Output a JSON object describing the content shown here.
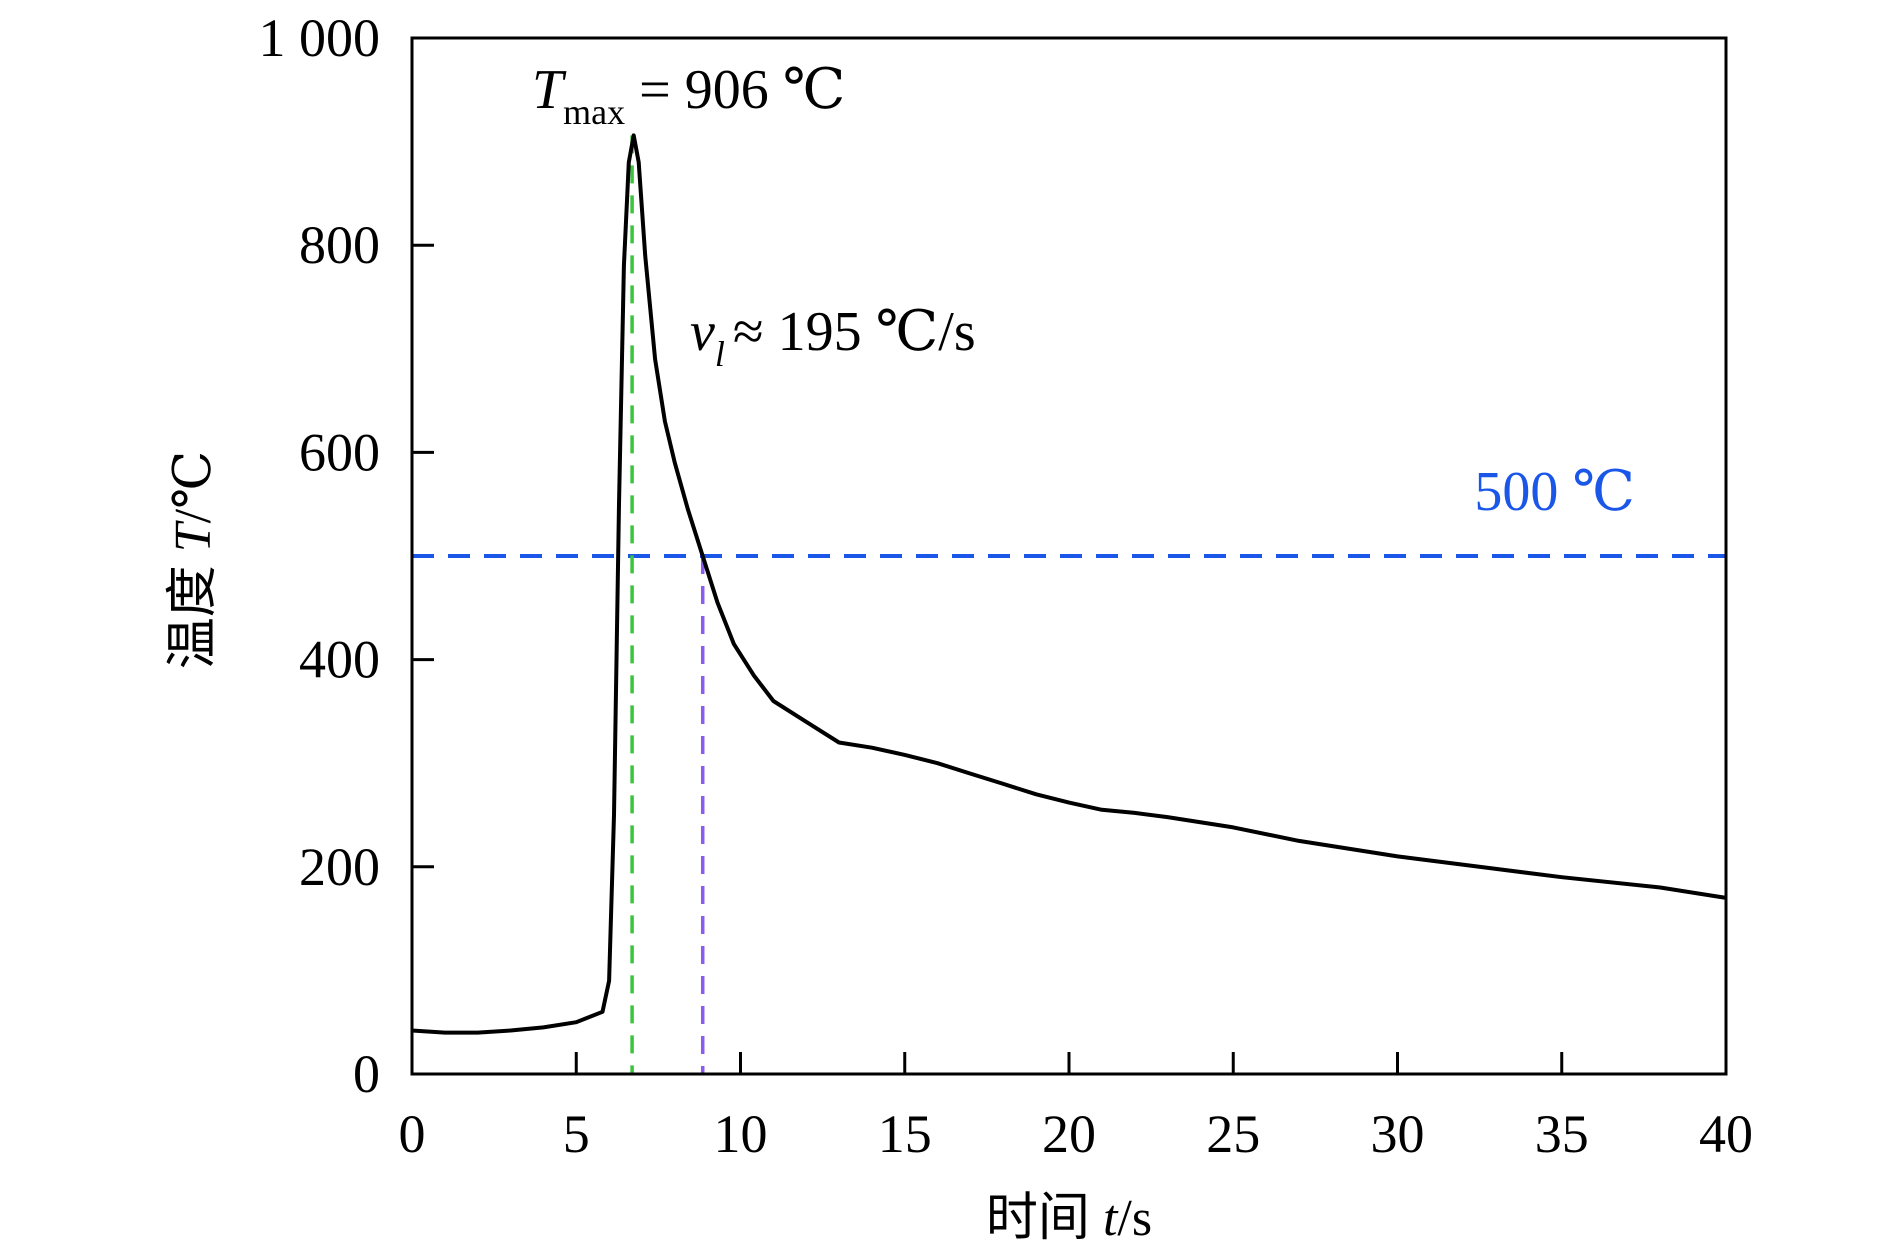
{
  "chart_data": {
    "type": "line",
    "title": "",
    "xlabel_cn": "时间",
    "xlabel_var": "t",
    "xlabel_unit": "/s",
    "ylabel_cn": "温度",
    "ylabel_var": "T",
    "ylabel_unit": "/℃",
    "xlim": [
      0,
      40
    ],
    "ylim": [
      0,
      1000
    ],
    "xticks": [
      0,
      5,
      10,
      15,
      20,
      25,
      30,
      35,
      40
    ],
    "xtick_labels": [
      "0",
      "5",
      "10",
      "15",
      "20",
      "25",
      "30",
      "35",
      "40"
    ],
    "yticks": [
      0,
      200,
      400,
      600,
      800,
      1000
    ],
    "ytick_labels": [
      "0",
      "200",
      "400",
      "600",
      "800",
      "1 000"
    ],
    "grid": false,
    "series": [
      {
        "name": "temperature",
        "color": "#000000",
        "x": [
          0,
          1,
          2,
          3,
          4,
          5,
          5.8,
          6.0,
          6.15,
          6.3,
          6.45,
          6.6,
          6.75,
          6.9,
          7.1,
          7.4,
          7.7,
          8.0,
          8.4,
          8.85,
          9.3,
          9.8,
          10.4,
          11,
          12,
          13,
          14,
          15,
          16,
          17,
          18,
          19,
          20,
          21,
          22,
          23,
          25,
          27,
          30,
          33,
          35,
          38,
          40
        ],
        "y": [
          42,
          40,
          40,
          42,
          45,
          50,
          60,
          90,
          250,
          550,
          780,
          880,
          906,
          880,
          790,
          690,
          630,
          590,
          545,
          500,
          455,
          415,
          385,
          360,
          340,
          320,
          315,
          308,
          300,
          290,
          280,
          270,
          262,
          255,
          252,
          248,
          238,
          225,
          210,
          198,
          190,
          180,
          170
        ]
      }
    ],
    "reference_lines": {
      "horizontal": {
        "value": 500,
        "color": "#1a56e8",
        "label": "500 ℃"
      },
      "peak_vertical": {
        "value": 6.7,
        "color": "#3cc43c"
      },
      "crossing_vertical": {
        "value": 8.85,
        "color": "#8a5cf0"
      }
    },
    "annotations": {
      "tmax_T": "T",
      "tmax_sub": "max",
      "tmax_value": " = 906 ℃",
      "rate_v": "v",
      "rate_sub": "l",
      "rate_value": "≈ 195 ℃/s"
    }
  }
}
